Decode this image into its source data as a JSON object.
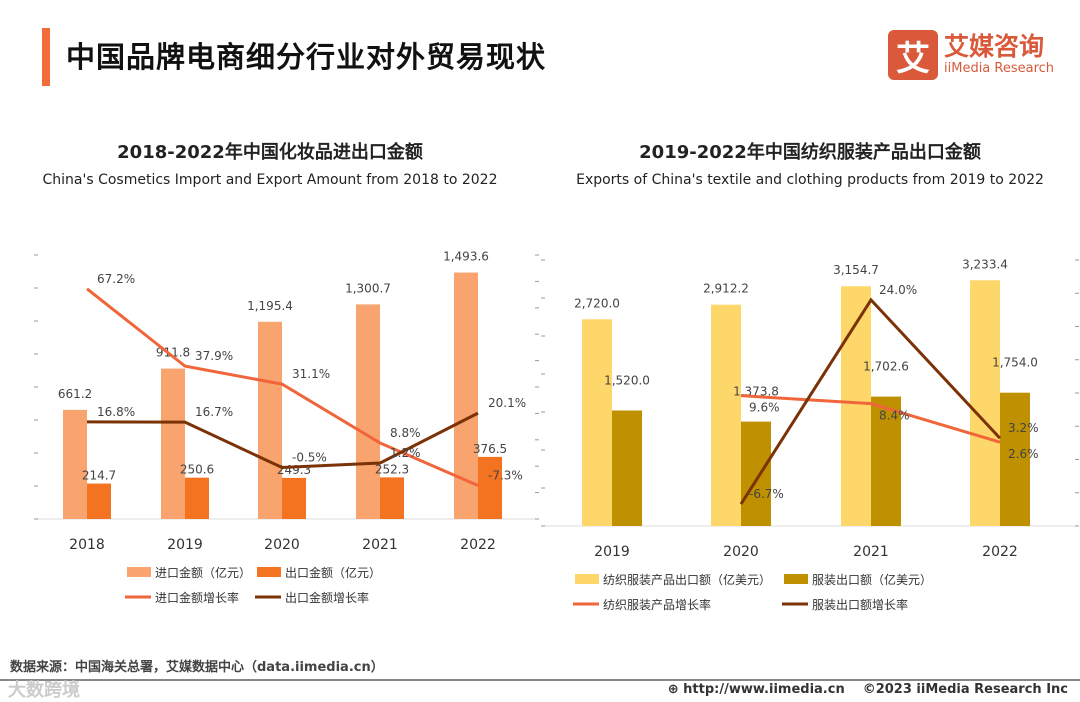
{
  "header": {
    "title": "中国品牌电商细分行业对外贸易现状",
    "logo_cn": "艾媒咨询",
    "logo_en": "iiMedia Research",
    "logo_mark": "艾"
  },
  "chart_data": [
    {
      "type": "bar+line",
      "title": "2018-2022年中国化妆品进出口金额",
      "subtitle": "China's Cosmetics Import and Export Amount from 2018 to 2022",
      "categories": [
        "2018",
        "2019",
        "2020",
        "2021",
        "2022"
      ],
      "ylim": [
        0,
        1600
      ],
      "y2lim": [
        -20,
        80
      ],
      "series": [
        {
          "name": "进口金额（亿元）",
          "kind": "bar",
          "color": "#f9a46f",
          "values": [
            661.2,
            911.8,
            1195.4,
            1300.7,
            1493.6
          ],
          "labels": [
            "661.2",
            "911.8",
            "1,195.4",
            "1,300.7",
            "1,493.6"
          ]
        },
        {
          "name": "出口金额（亿元）",
          "kind": "bar",
          "color": "#f47321",
          "values": [
            214.7,
            250.6,
            249.3,
            252.3,
            376.5
          ],
          "labels": [
            "214.7",
            "250.6",
            "249.3",
            "252.3",
            "376.5"
          ]
        },
        {
          "name": "进口金额增长率",
          "kind": "line",
          "color": "#f0663a",
          "values": [
            67.2,
            37.9,
            31.1,
            8.8,
            -7.3
          ],
          "labels": [
            "67.2%",
            "37.9%",
            "31.1%",
            "8.8%",
            "-7.3%"
          ]
        },
        {
          "name": "出口金额增长率",
          "kind": "line",
          "color": "#7a3206",
          "values": [
            16.8,
            16.7,
            -0.5,
            1.2,
            20.1
          ],
          "labels": [
            "16.8%",
            "16.7%",
            "-0.5%",
            "1.2%",
            "20.1%"
          ]
        }
      ]
    },
    {
      "type": "bar+line",
      "title": "2019-2022年中国纺织服装产品出口金额",
      "subtitle": "Exports of China's textile and clothing products from 2019 to 2022",
      "categories": [
        "2019",
        "2020",
        "2021",
        "2022"
      ],
      "ylim": [
        0,
        3500
      ],
      "y2lim": [
        -10,
        30
      ],
      "series": [
        {
          "name": "纺织服装产品出口额（亿美元）",
          "kind": "bar",
          "color": "#fdd769",
          "values": [
            2720.0,
            2912.2,
            3154.7,
            3233.4
          ],
          "labels": [
            "2,720.0",
            "2,912.2",
            "3,154.7",
            "3,233.4"
          ]
        },
        {
          "name": "服装出口额（亿美元）",
          "kind": "bar",
          "color": "#bf9000",
          "values": [
            1520.0,
            1373.8,
            1702.6,
            1754.0
          ],
          "labels": [
            "1,520.0",
            "1,373.8",
            "1,702.6",
            "1,754.0"
          ]
        },
        {
          "name": "纺织服装产品增长率",
          "kind": "line",
          "color": "#f0663a",
          "values": [
            null,
            9.6,
            8.4,
            2.6
          ],
          "labels": [
            "",
            "9.6%",
            "8.4%",
            "2.6%"
          ]
        },
        {
          "name": "服装出口额增长率",
          "kind": "line",
          "color": "#7a3206",
          "values": [
            null,
            -6.7,
            24.0,
            3.2
          ],
          "labels": [
            "",
            "-6.7%",
            "24.0%",
            "3.2%"
          ]
        }
      ]
    }
  ],
  "footer": {
    "source": "数据来源：中国海关总署，艾媒数据中心（data.iimedia.cn）",
    "url": "http://www.iimedia.cn",
    "copyright": "©2023  iiMedia Research  Inc",
    "watermark": "大数跨境"
  }
}
